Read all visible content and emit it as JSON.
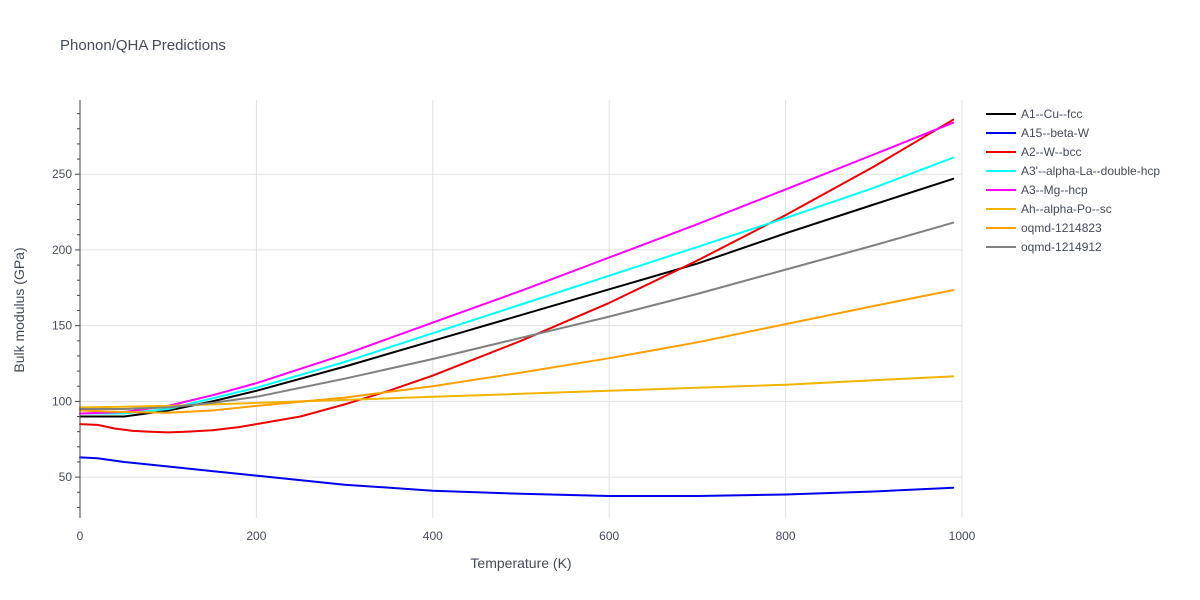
{
  "chart_data": {
    "type": "line",
    "title": "Phonon/QHA Predictions",
    "xlabel": "Temperature (K)",
    "ylabel": "Bulk modulus (GPa)",
    "xlim": [
      0,
      1000
    ],
    "ylim": [
      23,
      299
    ],
    "xticks": [
      0,
      200,
      400,
      600,
      800,
      1000
    ],
    "yticks": [
      50,
      100,
      150,
      200,
      250
    ],
    "grid": true,
    "legend_position": "top-right",
    "series": [
      {
        "name": "A1--Cu--fcc",
        "color": "#000000",
        "x": [
          0,
          50,
          100,
          150,
          200,
          300,
          400,
          500,
          600,
          700,
          800,
          900,
          990
        ],
        "y": [
          90,
          90,
          94,
          100,
          107,
          123,
          140,
          157,
          174,
          191,
          211,
          230,
          247
        ]
      },
      {
        "name": "A15--beta-W",
        "color": "#0000ee",
        "x": [
          0,
          20,
          50,
          100,
          150,
          200,
          300,
          400,
          500,
          600,
          700,
          800,
          900,
          990
        ],
        "y": [
          63,
          62.5,
          60,
          57,
          54,
          51,
          45,
          41,
          39,
          37.5,
          37.5,
          38.5,
          40.5,
          43
        ]
      },
      {
        "name": "A2--W--bcc",
        "color": "#ee0000",
        "x": [
          0,
          20,
          40,
          60,
          80,
          100,
          120,
          150,
          180,
          200,
          250,
          300,
          350,
          400,
          500,
          600,
          700,
          800,
          900,
          990
        ],
        "y": [
          85,
          84.5,
          82,
          80.5,
          80,
          79.5,
          80,
          81,
          83,
          85,
          90,
          98,
          107,
          117,
          140,
          165,
          193,
          223,
          255,
          286
        ]
      },
      {
        "name": "A3'--alpha-La--double-hcp",
        "color": "#00ffff",
        "x": [
          0,
          50,
          100,
          150,
          200,
          300,
          400,
          500,
          600,
          700,
          800,
          900,
          990
        ],
        "y": [
          92,
          92,
          95,
          102,
          109,
          126,
          145,
          164,
          183,
          202,
          221,
          241,
          261
        ]
      },
      {
        "name": "A3--Mg--hcp",
        "color": "#ff00ff",
        "x": [
          0,
          50,
          100,
          150,
          200,
          300,
          400,
          500,
          600,
          700,
          800,
          900,
          990
        ],
        "y": [
          92,
          93,
          97,
          104,
          112,
          131,
          152,
          173,
          195,
          217,
          240,
          263,
          284
        ]
      },
      {
        "name": "Ah--alpha-Po--sc",
        "color": "#f0b400",
        "x": [
          0,
          50,
          100,
          150,
          200,
          300,
          400,
          500,
          600,
          700,
          800,
          900,
          990
        ],
        "y": [
          96,
          96.5,
          97,
          98,
          99,
          101,
          103,
          105,
          107,
          109,
          111,
          114,
          116.5
        ]
      },
      {
        "name": "oqmd-1214823",
        "color": "#ffa000",
        "x": [
          0,
          50,
          100,
          150,
          200,
          300,
          400,
          500,
          600,
          700,
          800,
          900,
          990
        ],
        "y": [
          94,
          93,
          92.5,
          94,
          97,
          102.5,
          110,
          119,
          128.5,
          139,
          151,
          163,
          173.5
        ]
      },
      {
        "name": "oqmd-1214912",
        "color": "#808080",
        "x": [
          0,
          50,
          100,
          150,
          200,
          300,
          400,
          500,
          600,
          700,
          800,
          900,
          990
        ],
        "y": [
          95,
          95,
          96,
          99,
          103,
          115,
          128,
          142,
          156,
          171,
          187,
          203,
          218
        ]
      }
    ]
  }
}
